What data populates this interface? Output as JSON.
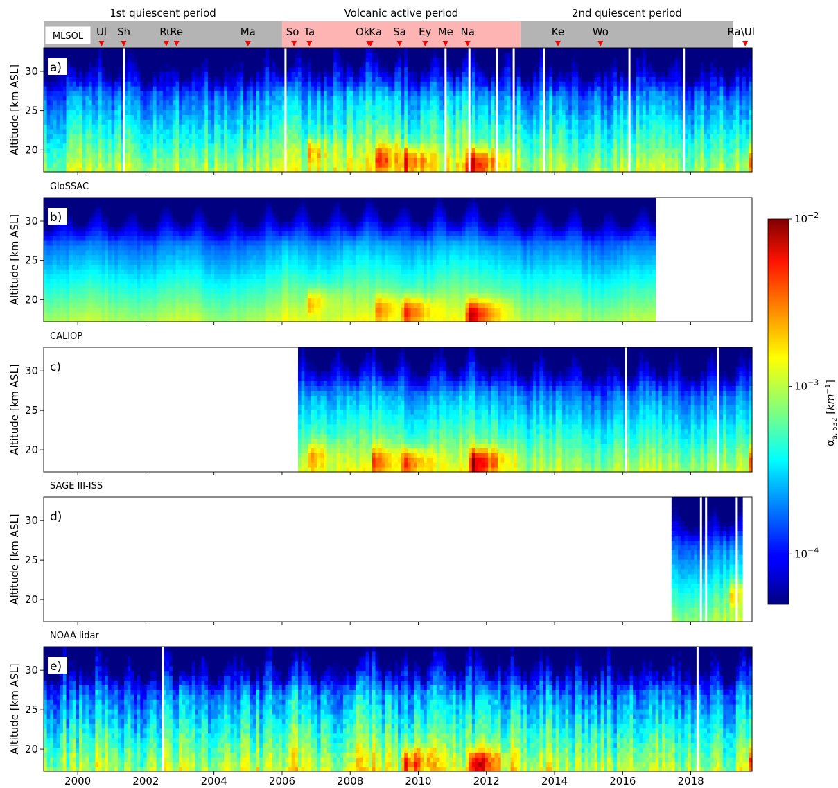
{
  "periods": [
    {
      "label": "1st quiescent period",
      "start": 1999.0,
      "end": 2006.0,
      "color": "#b4b4b4"
    },
    {
      "label": "Volcanic active period",
      "start": 2006.0,
      "end": 2013.0,
      "color": "#ffb4b4"
    },
    {
      "label": "2nd quiescent period",
      "start": 2013.0,
      "end": 2019.25,
      "color": "#b4b4b4"
    }
  ],
  "period_bar_tag": "MLSOL",
  "eruptions": [
    {
      "label": "Ul",
      "x": 2000.7
    },
    {
      "label": "Sh",
      "x": 2001.35
    },
    {
      "label": "Ru",
      "x": 2002.6
    },
    {
      "label": "Re",
      "x": 2002.9
    },
    {
      "label": "Ma",
      "x": 2005.0
    },
    {
      "label": "So",
      "x": 2006.35
    },
    {
      "label": "Ta",
      "x": 2006.8
    },
    {
      "label": "Ok",
      "x": 2008.55
    },
    {
      "label": "Ka",
      "x": 2008.6
    },
    {
      "label": "Sa",
      "x": 2009.45
    },
    {
      "label": "Ey",
      "x": 2010.2
    },
    {
      "label": "Me",
      "x": 2010.8
    },
    {
      "label": "Na",
      "x": 2011.45
    },
    {
      "label": "Ke",
      "x": 2014.1
    },
    {
      "label": "Wo",
      "x": 2015.35
    },
    {
      "label": "Ra\\Ul",
      "x": 2019.6
    }
  ],
  "chart_data": {
    "type": "heatmap",
    "x_range": [
      1999.0,
      2019.8
    ],
    "y_range": [
      17.2,
      33.0
    ],
    "ylabel": "Altitude [km ASL]",
    "xticks": [
      {
        "value": 2000,
        "label": "2000"
      },
      {
        "value": 2002,
        "label": "2002"
      },
      {
        "value": 2004,
        "label": "2004"
      },
      {
        "value": 2006,
        "label": "2006"
      },
      {
        "value": 2008,
        "label": "2008"
      },
      {
        "value": 2010,
        "label": "2010"
      },
      {
        "value": 2012,
        "label": "2012"
      },
      {
        "value": 2014,
        "label": "2014"
      },
      {
        "value": 2016,
        "label": "2016"
      },
      {
        "value": 2018,
        "label": "2018"
      }
    ],
    "yticks": [
      {
        "value": 20,
        "label": "20"
      },
      {
        "value": 25,
        "label": "25"
      },
      {
        "value": 30,
        "label": "30"
      }
    ],
    "colorbar": {
      "label": "α_a,532 [km^-1]",
      "label_parts": {
        "symbol": "α",
        "subscript": "a, 532",
        "unit": "km",
        "unit_exp": "−1"
      },
      "min": 5e-05,
      "max": 0.01,
      "scale": "log",
      "ticks": [
        {
          "value": 0.01,
          "base": "10",
          "exp": "−2"
        },
        {
          "value": 0.001,
          "base": "10",
          "exp": "−3"
        },
        {
          "value": 0.0001,
          "base": "10",
          "exp": "−4"
        }
      ],
      "colormap": "jet"
    },
    "panels": [
      {
        "letter": "a)",
        "title": "",
        "start": 1999.0,
        "end": 2019.8,
        "noise": 0.45,
        "gaps": [
          2001.35,
          2006.1,
          2010.8,
          2011.5,
          2012.3,
          2012.8,
          2013.7,
          2016.2,
          2017.8
        ],
        "events": [
          {
            "x": 2006.8,
            "alt": 19.5,
            "peak": 0.0015
          },
          {
            "x": 2008.8,
            "alt": 18.8,
            "peak": 0.003
          },
          {
            "x": 2009.6,
            "alt": 18.3,
            "peak": 0.004
          },
          {
            "x": 2011.5,
            "alt": 18.0,
            "peak": 0.008
          },
          {
            "x": 2019.8,
            "alt": 18.5,
            "peak": 0.005
          }
        ]
      },
      {
        "letter": "b)",
        "title": "GloSSAC",
        "start": 1999.0,
        "end": 2017.0,
        "noise": 0.12,
        "gaps": [],
        "events": [
          {
            "x": 2006.8,
            "alt": 19.5,
            "peak": 0.0015
          },
          {
            "x": 2008.8,
            "alt": 18.8,
            "peak": 0.002
          },
          {
            "x": 2009.6,
            "alt": 18.3,
            "peak": 0.004
          },
          {
            "x": 2011.5,
            "alt": 18.0,
            "peak": 0.007
          }
        ]
      },
      {
        "letter": "c)",
        "title": "CALIOP",
        "start": 2006.45,
        "end": 2019.8,
        "noise": 0.3,
        "gaps": [
          2016.1,
          2018.8
        ],
        "events": [
          {
            "x": 2006.8,
            "alt": 19.0,
            "peak": 0.0015
          },
          {
            "x": 2008.7,
            "alt": 18.5,
            "peak": 0.0025
          },
          {
            "x": 2009.6,
            "alt": 18.2,
            "peak": 0.004
          },
          {
            "x": 2011.6,
            "alt": 18.2,
            "peak": 0.008
          },
          {
            "x": 2019.8,
            "alt": 18.5,
            "peak": 0.004
          }
        ]
      },
      {
        "letter": "d)",
        "title": "SAGE III-ISS",
        "start": 2017.4,
        "end": 2019.5,
        "noise": 0.25,
        "gaps": [
          2018.3,
          2018.45,
          2019.35
        ],
        "events": [
          {
            "x": 2019.2,
            "alt": 20.5,
            "peak": 0.0012
          }
        ]
      },
      {
        "letter": "e)",
        "title": "NOAA lidar",
        "start": 1999.0,
        "end": 2019.8,
        "noise": 0.6,
        "gaps": [
          2002.5,
          2018.2
        ],
        "events": [
          {
            "x": 2009.6,
            "alt": 18.2,
            "peak": 0.004
          },
          {
            "x": 2011.6,
            "alt": 18.0,
            "peak": 0.007
          },
          {
            "x": 2019.8,
            "alt": 18.3,
            "peak": 0.005
          }
        ]
      }
    ]
  }
}
